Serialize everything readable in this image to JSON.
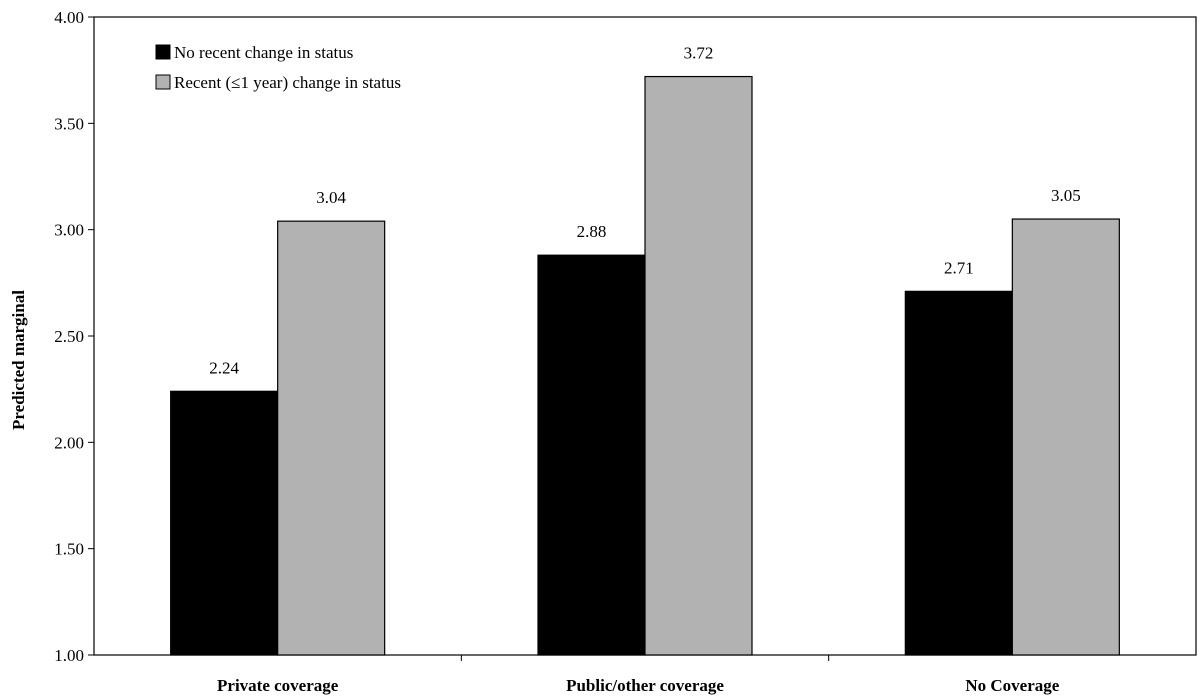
{
  "chart_data": {
    "type": "bar",
    "title": "",
    "xlabel": "",
    "ylabel": "Predicted marginal",
    "categories": [
      "Private coverage",
      "Public/other coverage",
      "No Coverage"
    ],
    "series": [
      {
        "name": "No recent change in status",
        "color": "#000000",
        "values": [
          2.24,
          2.88,
          2.71
        ]
      },
      {
        "name": "Recent (≤1 year) change in status",
        "color": "#b2b2b2",
        "values": [
          3.04,
          3.72,
          3.05
        ]
      }
    ],
    "data_labels": [
      [
        "2.24",
        "2.88",
        "2.71"
      ],
      [
        "3.04",
        "3.72",
        "3.05"
      ]
    ],
    "ylim": [
      1.0,
      4.0
    ],
    "yticks": [
      "1.00",
      "1.50",
      "2.00",
      "2.50",
      "3.00",
      "3.50",
      "4.00"
    ],
    "grid": false,
    "legend_position": "top-left"
  }
}
